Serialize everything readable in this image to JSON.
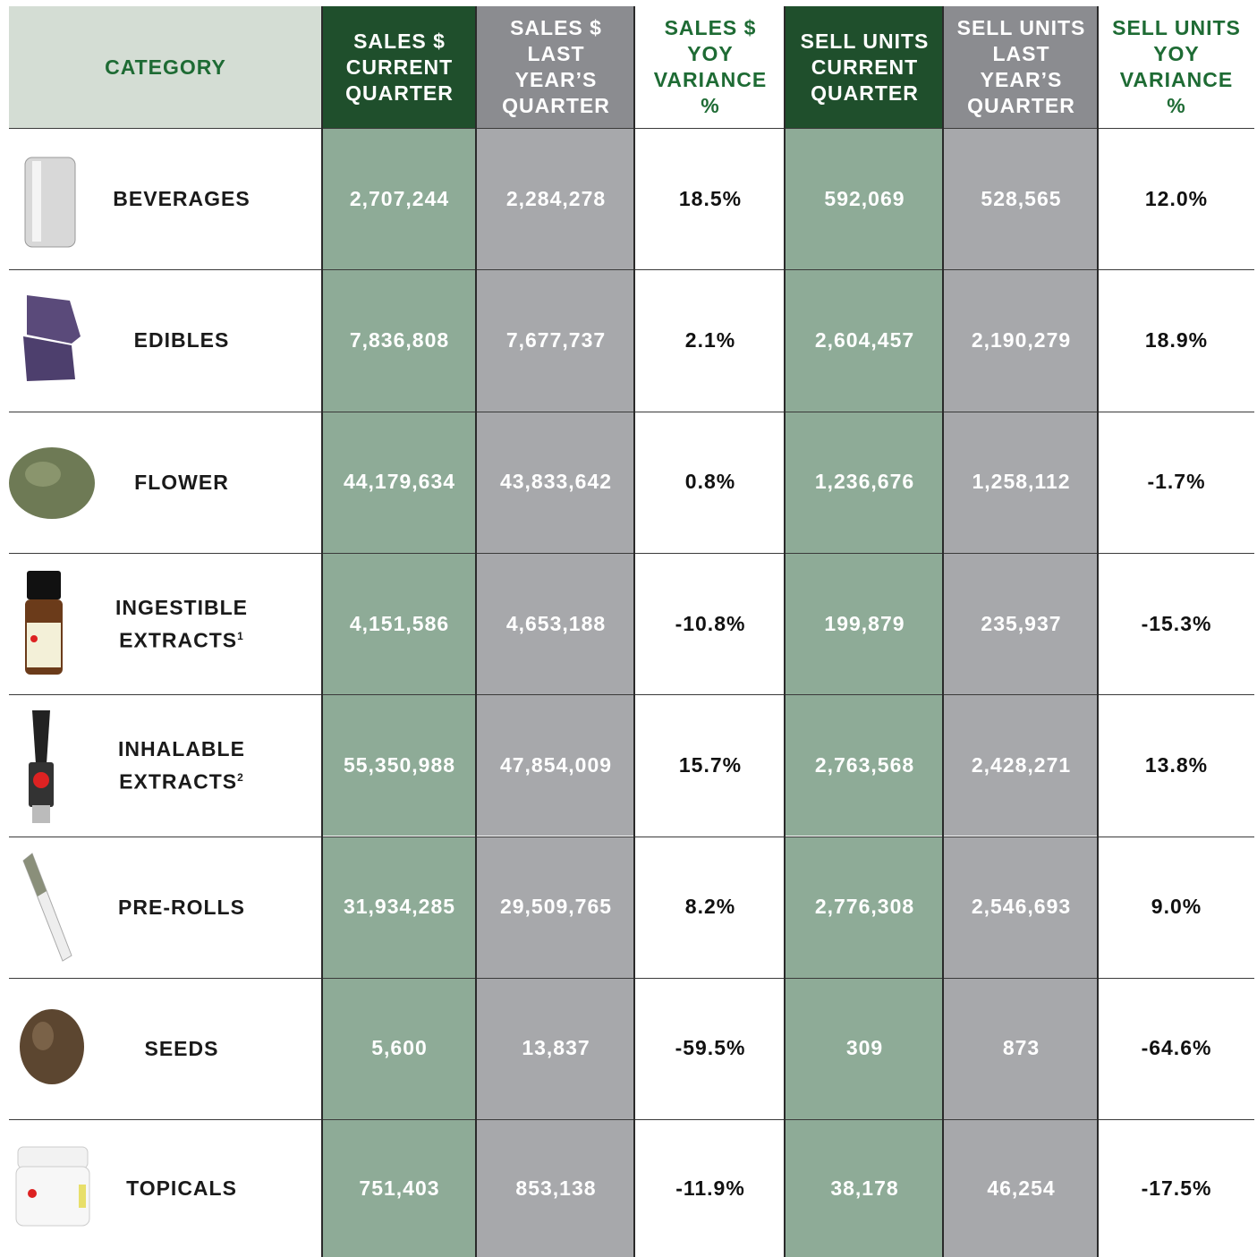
{
  "table": {
    "header": {
      "category": "CATEGORY",
      "columns": [
        {
          "lines": [
            "SALES $",
            "CURRENT",
            "QUARTER"
          ]
        },
        {
          "lines": [
            "SALES $",
            "LAST",
            "YEAR’S",
            "QUARTER"
          ]
        },
        {
          "lines": [
            "SALES $",
            "YOY",
            "VARIANCE",
            "%"
          ]
        },
        {
          "lines": [
            "SELL UNITS",
            "CURRENT",
            "QUARTER"
          ]
        },
        {
          "lines": [
            "SELL UNITS",
            "LAST",
            "YEAR’S",
            "QUARTER"
          ]
        },
        {
          "lines": [
            "SELL UNITS",
            "YOY",
            "VARIANCE",
            "%"
          ]
        }
      ]
    },
    "rows": [
      {
        "category": [
          "BEVERAGES"
        ],
        "values": [
          "2,707,244",
          "2,284,278",
          "18.5%",
          "592,069",
          "528,565",
          "12.0%"
        ]
      },
      {
        "category": [
          "EDIBLES"
        ],
        "values": [
          "7,836,808",
          "7,677,737",
          "2.1%",
          "2,604,457",
          "2,190,279",
          "18.9%"
        ]
      },
      {
        "category": [
          "FLOWER"
        ],
        "values": [
          "44,179,634",
          "43,833,642",
          "0.8%",
          "1,236,676",
          "1,258,112",
          "-1.7%"
        ]
      },
      {
        "category": [
          "INGESTIBLE",
          "EXTRACTS"
        ],
        "note": "1",
        "values": [
          "4,151,586",
          "4,653,188",
          "-10.8%",
          "199,879",
          "235,937",
          "-15.3%"
        ]
      },
      {
        "category": [
          "INHALABLE",
          "EXTRACTS"
        ],
        "note": "2",
        "values": [
          "55,350,988",
          "47,854,009",
          "15.7%",
          "2,763,568",
          "2,428,271",
          "13.8%"
        ]
      },
      {
        "category": [
          "PRE-ROLLS"
        ],
        "values": [
          "31,934,285",
          "29,509,765",
          "8.2%",
          "2,776,308",
          "2,546,693",
          "9.0%"
        ]
      },
      {
        "category": [
          "SEEDS"
        ],
        "values": [
          "5,600",
          "13,837",
          "-59.5%",
          "309",
          "873",
          "-64.6%"
        ]
      },
      {
        "category": [
          "TOPICALS"
        ],
        "values": [
          "751,403",
          "853,138",
          "-11.9%",
          "38,178",
          "46,254",
          "-17.5%"
        ]
      }
    ]
  }
}
